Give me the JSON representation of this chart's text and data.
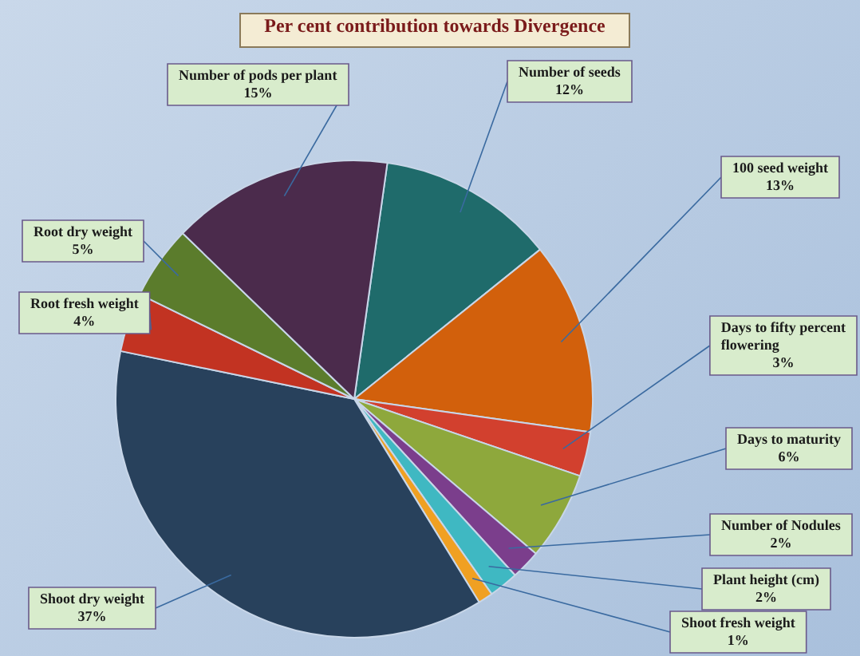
{
  "chart_data": {
    "type": "pie",
    "title": "Per cent contribution towards Divergence",
    "categories": [
      "Number of seeds",
      "100 seed weight",
      "Days to fifty percent flowering",
      "Days to maturity",
      "Number of Nodules",
      "Plant height (cm)",
      "Shoot fresh weight",
      "Shoot dry weight",
      "Root fresh weight",
      "Root dry weight",
      "Number of pods per plant"
    ],
    "values": [
      12,
      13,
      3,
      6,
      2,
      2,
      1,
      37,
      4,
      5,
      15
    ],
    "value_labels": [
      "12%",
      "13%",
      "3%",
      "6%",
      "2%",
      "2%",
      "1%",
      "37%",
      "4%",
      "5%",
      "15%"
    ],
    "colors": [
      "#1f6b6b",
      "#d2600c",
      "#d2402e",
      "#8ea83c",
      "#7b3e8c",
      "#3fb8c2",
      "#f0a022",
      "#28415c",
      "#c23322",
      "#5b7c2c",
      "#4b2b4c"
    ],
    "legend": false
  }
}
